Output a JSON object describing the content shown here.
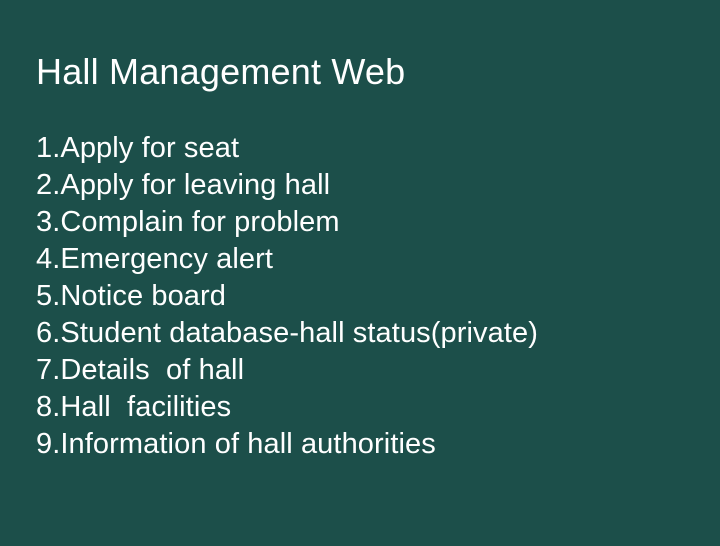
{
  "title": "Hall Management Web",
  "items": [
    "1.Apply for seat",
    "2.Apply for leaving hall",
    "3.Complain for problem",
    "4.Emergency alert",
    "5.Notice board",
    "6.Student database-hall status(private)",
    "7.Details  of hall",
    "8.Hall  facilities",
    "9.Information of hall authorities"
  ],
  "colors": {
    "background": "#1c4f4a",
    "text": "#ffffff"
  }
}
